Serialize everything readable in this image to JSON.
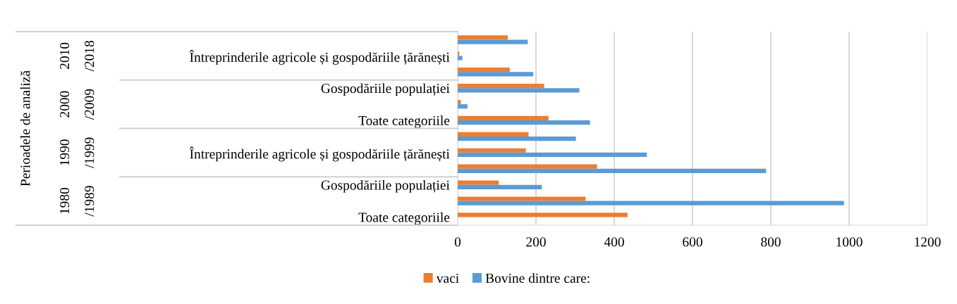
{
  "chart_data": {
    "type": "bar",
    "orientation": "horizontal",
    "categories": [
      null,
      "Întreprinderile agricole și gospodăriile țărănești",
      null,
      "Gospodăriile populației",
      null,
      "Toate categoriile",
      null,
      "Întreprinderile agricole și gospodăriile țărănești",
      null,
      "Gospodăriile populației",
      null,
      "Toate categoriile"
    ],
    "series": [
      {
        "name": "vaci",
        "color": "#ed7d31",
        "values": [
          128,
          4,
          133,
          221,
          8,
          232,
          181,
          174,
          356,
          105,
          327,
          434
        ]
      },
      {
        "name": "Bovine dintre care:",
        "color": "#5b9bd5",
        "values": [
          179,
          12,
          193,
          311,
          25,
          338,
          302,
          483,
          788,
          215,
          987,
          null
        ]
      }
    ],
    "xlim": [
      0,
      1200
    ],
    "xticks": [
      0,
      200,
      400,
      600,
      800,
      1000,
      1200
    ],
    "grid": "x",
    "legend": "bottom",
    "annotations": [
      "Perioadele de analiză",
      "2010\n/2018",
      "2000\n/2009",
      "1990\n/1999",
      "1980\n/1989"
    ]
  }
}
